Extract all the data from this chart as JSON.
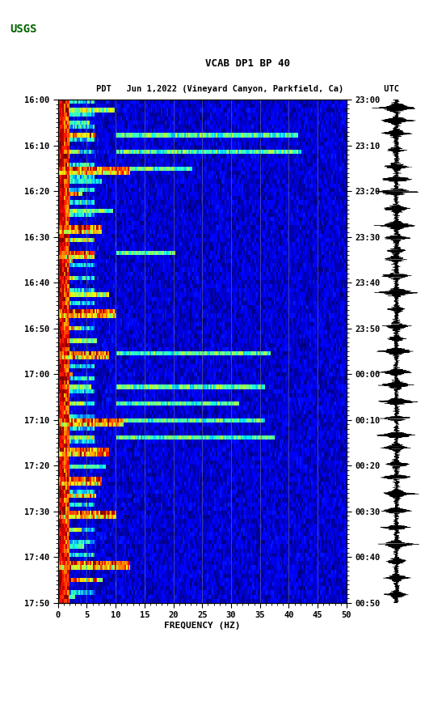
{
  "title_line1": "VCAB DP1 BP 40",
  "title_line2": "PDT   Jun 1,2022 (Vineyard Canyon, Parkfield, Ca)        UTC",
  "left_yticks": [
    "16:00",
    "16:10",
    "16:20",
    "16:30",
    "16:40",
    "16:50",
    "17:00",
    "17:10",
    "17:20",
    "17:30",
    "17:40",
    "17:50"
  ],
  "right_yticks": [
    "23:00",
    "23:10",
    "23:20",
    "23:30",
    "23:40",
    "23:50",
    "00:00",
    "00:10",
    "00:20",
    "00:30",
    "00:40",
    "00:50"
  ],
  "xticks": [
    0,
    5,
    10,
    15,
    20,
    25,
    30,
    35,
    40,
    45,
    50
  ],
  "xlabel": "FREQUENCY (HZ)",
  "xgrid_lines": [
    5,
    10,
    15,
    20,
    25,
    30,
    35,
    40,
    45
  ],
  "freq_max": 50,
  "time_steps": 120,
  "background_color": "#ffffff",
  "spectrogram_cmap": "jet",
  "low_freq_color": "#8b0000"
}
